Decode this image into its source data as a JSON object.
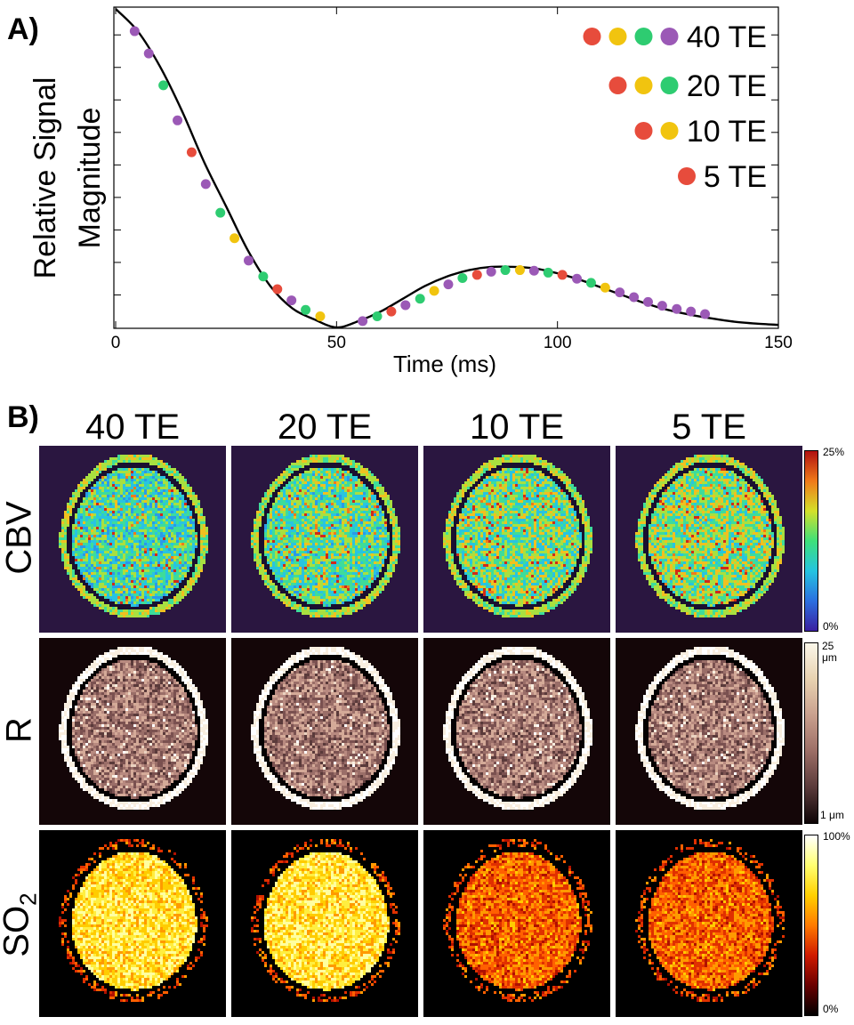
{
  "panel_a": {
    "label": "A)",
    "chart_data": {
      "type": "line",
      "title": "",
      "xlabel": "Time (ms)",
      "ylabel_line1": "Relative Signal",
      "ylabel_line2": "Magnitude",
      "xlim": [
        0,
        150
      ],
      "ylim": [
        0,
        1
      ],
      "x_ticks": [
        "0",
        "50",
        "100",
        "150"
      ],
      "x_tick_values": [
        0,
        50,
        100,
        150
      ],
      "legend": [
        {
          "label": "40 TE",
          "colors": [
            "#e74c3c",
            "#f1c40f",
            "#2ecc71",
            "#9b59b6"
          ]
        },
        {
          "label": "20 TE",
          "colors": [
            "#e74c3c",
            "#f1c40f",
            "#2ecc71"
          ]
        },
        {
          "label": "10 TE",
          "colors": [
            "#e74c3c",
            "#f1c40f"
          ]
        },
        {
          "label": "5 TE",
          "colors": [
            "#e74c3c"
          ]
        }
      ],
      "curve": {
        "x": [
          0,
          5,
          10,
          15,
          20,
          25,
          30,
          35,
          40,
          45,
          50,
          55,
          60,
          65,
          70,
          75,
          80,
          85,
          90,
          95,
          100,
          105,
          110,
          115,
          120,
          125,
          130,
          135,
          140,
          145,
          150
        ],
        "y": [
          1.0,
          0.93,
          0.82,
          0.68,
          0.52,
          0.38,
          0.24,
          0.13,
          0.06,
          0.025,
          0.0,
          0.02,
          0.05,
          0.09,
          0.13,
          0.16,
          0.18,
          0.19,
          0.19,
          0.185,
          0.17,
          0.15,
          0.125,
          0.1,
          0.075,
          0.055,
          0.04,
          0.028,
          0.018,
          0.012,
          0.008
        ]
      },
      "points": [
        {
          "x": 4.3,
          "y": 0.93,
          "color": "#9b59b6"
        },
        {
          "x": 7.5,
          "y": 0.86,
          "color": "#9b59b6"
        },
        {
          "x": 10.8,
          "y": 0.76,
          "color": "#2ecc71"
        },
        {
          "x": 14.0,
          "y": 0.65,
          "color": "#9b59b6"
        },
        {
          "x": 17.2,
          "y": 0.55,
          "color": "#e74c3c"
        },
        {
          "x": 20.4,
          "y": 0.45,
          "color": "#9b59b6"
        },
        {
          "x": 23.7,
          "y": 0.36,
          "color": "#2ecc71"
        },
        {
          "x": 26.9,
          "y": 0.28,
          "color": "#f1c40f"
        },
        {
          "x": 30.1,
          "y": 0.21,
          "color": "#9b59b6"
        },
        {
          "x": 33.4,
          "y": 0.16,
          "color": "#2ecc71"
        },
        {
          "x": 36.6,
          "y": 0.12,
          "color": "#e74c3c"
        },
        {
          "x": 39.8,
          "y": 0.085,
          "color": "#9b59b6"
        },
        {
          "x": 43.0,
          "y": 0.055,
          "color": "#2ecc71"
        },
        {
          "x": 46.3,
          "y": 0.035,
          "color": "#f1c40f"
        },
        {
          "x": 55.9,
          "y": 0.02,
          "color": "#9b59b6"
        },
        {
          "x": 59.2,
          "y": 0.035,
          "color": "#2ecc71"
        },
        {
          "x": 62.4,
          "y": 0.05,
          "color": "#e74c3c"
        },
        {
          "x": 65.6,
          "y": 0.07,
          "color": "#9b59b6"
        },
        {
          "x": 68.9,
          "y": 0.09,
          "color": "#2ecc71"
        },
        {
          "x": 72.1,
          "y": 0.115,
          "color": "#f1c40f"
        },
        {
          "x": 75.3,
          "y": 0.135,
          "color": "#9b59b6"
        },
        {
          "x": 78.5,
          "y": 0.155,
          "color": "#2ecc71"
        },
        {
          "x": 81.8,
          "y": 0.165,
          "color": "#e74c3c"
        },
        {
          "x": 85.0,
          "y": 0.175,
          "color": "#9b59b6"
        },
        {
          "x": 88.2,
          "y": 0.18,
          "color": "#2ecc71"
        },
        {
          "x": 91.5,
          "y": 0.18,
          "color": "#f1c40f"
        },
        {
          "x": 94.7,
          "y": 0.178,
          "color": "#9b59b6"
        },
        {
          "x": 97.9,
          "y": 0.172,
          "color": "#2ecc71"
        },
        {
          "x": 101.1,
          "y": 0.165,
          "color": "#e74c3c"
        },
        {
          "x": 104.4,
          "y": 0.153,
          "color": "#9b59b6"
        },
        {
          "x": 107.6,
          "y": 0.14,
          "color": "#2ecc71"
        },
        {
          "x": 110.8,
          "y": 0.125,
          "color": "#f1c40f"
        },
        {
          "x": 114.1,
          "y": 0.11,
          "color": "#9b59b6"
        },
        {
          "x": 117.3,
          "y": 0.095,
          "color": "#9b59b6"
        },
        {
          "x": 120.5,
          "y": 0.08,
          "color": "#9b59b6"
        },
        {
          "x": 123.7,
          "y": 0.068,
          "color": "#9b59b6"
        },
        {
          "x": 127.0,
          "y": 0.058,
          "color": "#9b59b6"
        },
        {
          "x": 130.2,
          "y": 0.05,
          "color": "#9b59b6"
        },
        {
          "x": 133.4,
          "y": 0.042,
          "color": "#9b59b6"
        }
      ]
    }
  },
  "panel_b": {
    "label": "B)",
    "columns": [
      "40 TE",
      "20 TE",
      "10 TE",
      "5 TE"
    ],
    "rows": [
      {
        "label": "CBV",
        "colormap": "jet",
        "bg": "#2a1640",
        "cbar_top": "25%",
        "cbar_bottom": "0%"
      },
      {
        "label": "R",
        "colormap": "pink",
        "bg": "#140608",
        "cbar_top": "25\nμm",
        "cbar_bottom": "1 μm"
      },
      {
        "label": "SO",
        "label_sub": "2",
        "colormap": "hot",
        "bg": "#000000",
        "cbar_top": "100%",
        "cbar_bottom": "0%"
      }
    ]
  }
}
